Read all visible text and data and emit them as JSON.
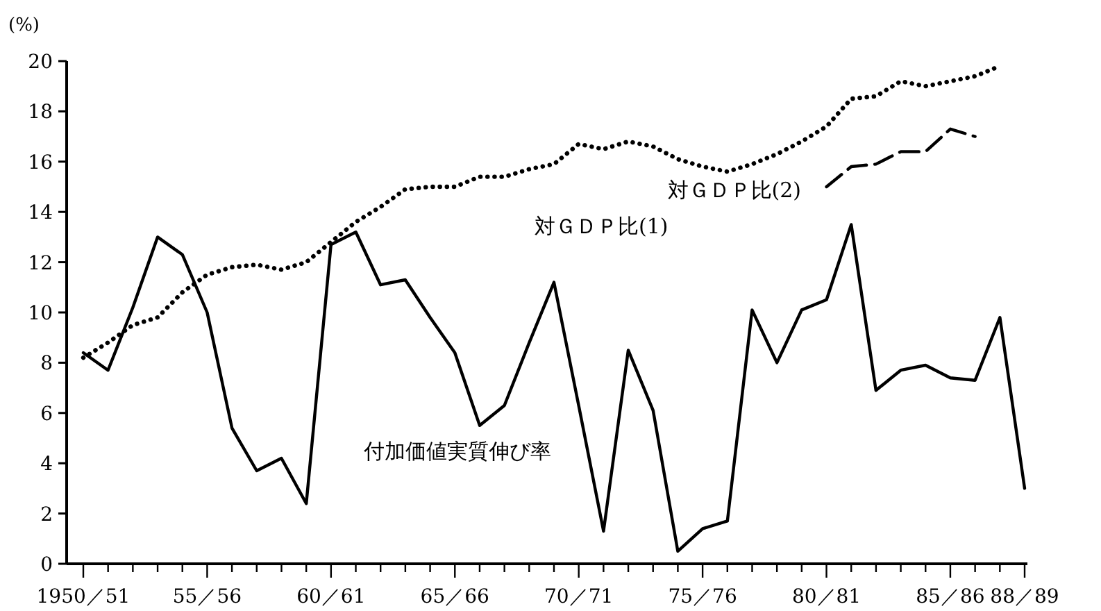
{
  "chart_data": {
    "type": "line",
    "ylabel": "(%)",
    "categories": [
      "1950／51",
      null,
      null,
      null,
      null,
      "55／56",
      null,
      null,
      null,
      null,
      "60／61",
      null,
      null,
      null,
      null,
      "65／66",
      null,
      null,
      null,
      null,
      "70／71",
      null,
      null,
      null,
      null,
      "75／76",
      null,
      null,
      null,
      null,
      "80／81",
      null,
      null,
      null,
      null,
      "85／86",
      null,
      null,
      "88／89"
    ],
    "series": [
      {
        "name": "付加価値実質伸び率",
        "color": "#000000",
        "line_style": "solid",
        "values": [
          8.4,
          7.7,
          10.2,
          13.0,
          12.3,
          10.0,
          5.4,
          3.7,
          4.2,
          2.4,
          12.7,
          13.2,
          11.1,
          11.3,
          9.8,
          8.4,
          5.5,
          6.3,
          8.8,
          11.2,
          6.3,
          1.3,
          8.5,
          6.1,
          0.5,
          1.4,
          1.7,
          10.1,
          8.0,
          10.1,
          10.5,
          13.5,
          6.9,
          7.7,
          7.9,
          7.4,
          7.3,
          9.8,
          3.0
        ]
      },
      {
        "name": "対ＧＤＰ比(1)",
        "color": "#000000",
        "line_style": "dotted",
        "values": [
          8.2,
          8.8,
          9.5,
          9.8,
          10.8,
          11.5,
          11.8,
          11.9,
          11.7,
          12.0,
          12.8,
          13.6,
          14.2,
          14.9,
          15.0,
          15.0,
          15.4,
          15.4,
          15.7,
          15.9,
          16.7,
          16.5,
          16.8,
          16.6,
          16.1,
          15.8,
          15.6,
          15.9,
          16.3,
          16.8,
          17.4,
          18.5,
          18.6,
          19.2,
          19.0,
          19.2,
          19.4,
          19.8,
          null
        ]
      },
      {
        "name": "対ＧＤＰ比(2)",
        "color": "#000000",
        "line_style": "dashed",
        "values": [
          null,
          null,
          null,
          null,
          null,
          null,
          null,
          null,
          null,
          null,
          null,
          null,
          null,
          null,
          null,
          null,
          null,
          null,
          null,
          null,
          null,
          null,
          null,
          null,
          null,
          null,
          null,
          null,
          null,
          null,
          15.0,
          15.8,
          15.9,
          16.4,
          16.4,
          17.3,
          17.0,
          null,
          null
        ]
      }
    ],
    "ylim": [
      0,
      20
    ],
    "yticks": [
      0,
      2,
      4,
      6,
      8,
      10,
      12,
      14,
      16,
      18,
      20
    ],
    "grid": false,
    "legend": false,
    "marker": "none"
  }
}
